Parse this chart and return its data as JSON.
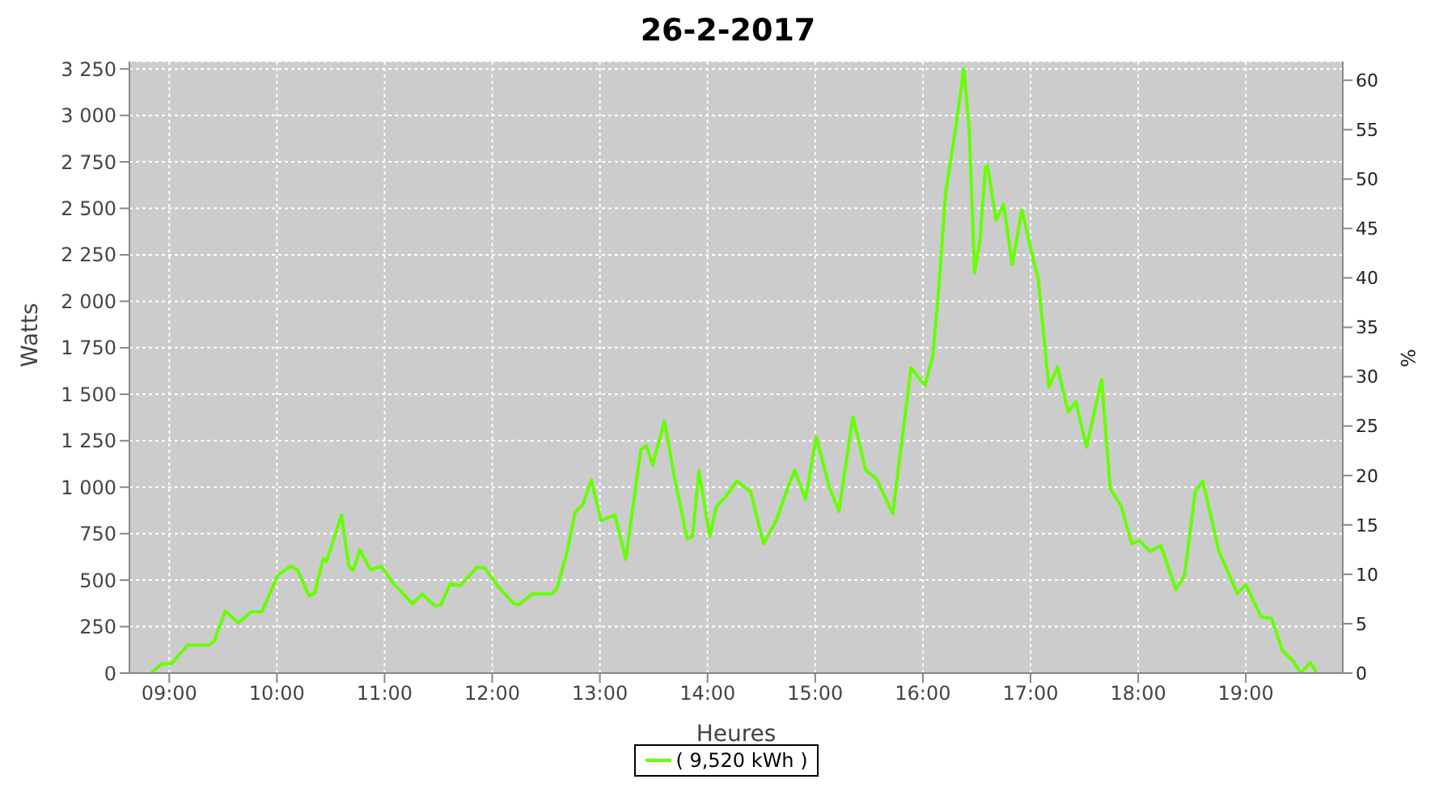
{
  "chart_data": {
    "type": "line",
    "title": "26-2-2017",
    "xlabel": "Heures",
    "ylabel": "Watts",
    "y2label": "%",
    "x": [
      8.83,
      8.93,
      9.02,
      9.17,
      9.37,
      9.42,
      9.52,
      9.64,
      9.76,
      9.86,
      10.01,
      10.13,
      10.19,
      10.3,
      10.35,
      10.43,
      10.46,
      10.53,
      10.6,
      10.67,
      10.71,
      10.77,
      10.87,
      10.97,
      11.07,
      11.26,
      11.35,
      11.46,
      11.52,
      11.61,
      11.7,
      11.86,
      11.93,
      12.05,
      12.2,
      12.25,
      12.37,
      12.55,
      12.6,
      12.69,
      12.77,
      12.84,
      12.92,
      13.01,
      13.14,
      13.24,
      13.38,
      13.43,
      13.49,
      13.6,
      13.69,
      13.81,
      13.86,
      13.92,
      14.02,
      14.08,
      14.19,
      14.27,
      14.4,
      14.52,
      14.64,
      14.74,
      14.81,
      14.91,
      15.01,
      15.13,
      15.22,
      15.35,
      15.47,
      15.57,
      15.72,
      15.89,
      16.02,
      16.09,
      16.14,
      16.21,
      16.31,
      16.38,
      16.43,
      16.48,
      16.53,
      16.58,
      16.6,
      16.68,
      16.75,
      16.83,
      16.92,
      17.03,
      17.07,
      17.17,
      17.25,
      17.35,
      17.42,
      17.52,
      17.66,
      17.74,
      17.84,
      17.94,
      18.01,
      18.11,
      18.21,
      18.35,
      18.43,
      18.53,
      18.6,
      18.75,
      18.92,
      19.0,
      19.14,
      19.24,
      19.34,
      19.44,
      19.51,
      19.6,
      19.66
    ],
    "series": [
      {
        "name": "( 9,520 kWh )",
        "color": "#66ff00",
        "values": [
          0,
          50,
          50,
          150,
          150,
          175,
          334,
          270,
          330,
          330,
          528,
          575,
          555,
          415,
          430,
          617,
          600,
          724,
          850,
          570,
          555,
          663,
          555,
          575,
          490,
          373,
          425,
          365,
          365,
          480,
          470,
          570,
          565,
          470,
          373,
          370,
          425,
          425,
          455,
          640,
          865,
          905,
          1038,
          820,
          850,
          612,
          1201,
          1225,
          1120,
          1355,
          1060,
          724,
          735,
          1090,
          735,
          892,
          965,
          1033,
          975,
          696,
          822,
          990,
          1090,
          935,
          1271,
          1000,
          870,
          1378,
          1090,
          1045,
          858,
          1642,
          1548,
          1700,
          2012,
          2576,
          2955,
          3250,
          2928,
          2155,
          2325,
          2717,
          2730,
          2436,
          2520,
          2198,
          2492,
          2212,
          2127,
          1538,
          1646,
          1404,
          1460,
          1215,
          1580,
          991,
          900,
          696,
          712,
          655,
          685,
          449,
          525,
          977,
          1033,
          655,
          429,
          475,
          303,
          295,
          120,
          63,
          0,
          56,
          0
        ]
      }
    ],
    "xlim": [
      8.63,
      19.9
    ],
    "xticks": [
      {
        "value": 9,
        "label": "09:00"
      },
      {
        "value": 10,
        "label": "10:00"
      },
      {
        "value": 11,
        "label": "11:00"
      },
      {
        "value": 12,
        "label": "12:00"
      },
      {
        "value": 13,
        "label": "13:00"
      },
      {
        "value": 14,
        "label": "14:00"
      },
      {
        "value": 15,
        "label": "15:00"
      },
      {
        "value": 16,
        "label": "16:00"
      },
      {
        "value": 17,
        "label": "17:00"
      },
      {
        "value": 18,
        "label": "18:00"
      },
      {
        "value": 19,
        "label": "19:00"
      }
    ],
    "ylim": [
      0,
      3290
    ],
    "yticks": [
      0,
      250,
      500,
      750,
      {
        "value": 1000,
        "label": "1 000"
      },
      {
        "value": 1250,
        "label": "1 250"
      },
      {
        "value": 1500,
        "label": "1 500"
      },
      {
        "value": 1750,
        "label": "1 750"
      },
      {
        "value": 2000,
        "label": "2 000"
      },
      {
        "value": 2250,
        "label": "2 250"
      },
      {
        "value": 2500,
        "label": "2 500"
      },
      {
        "value": 2750,
        "label": "2 750"
      },
      {
        "value": 3000,
        "label": "3 000"
      },
      {
        "value": 3250,
        "label": "3 250"
      }
    ],
    "y2lim": [
      0,
      61.9
    ],
    "y2ticks": [
      0,
      5,
      10,
      15,
      20,
      25,
      30,
      35,
      40,
      45,
      50,
      55,
      60
    ],
    "grid": true,
    "legend": "bottom",
    "marker": "none",
    "line_style": "solid"
  }
}
